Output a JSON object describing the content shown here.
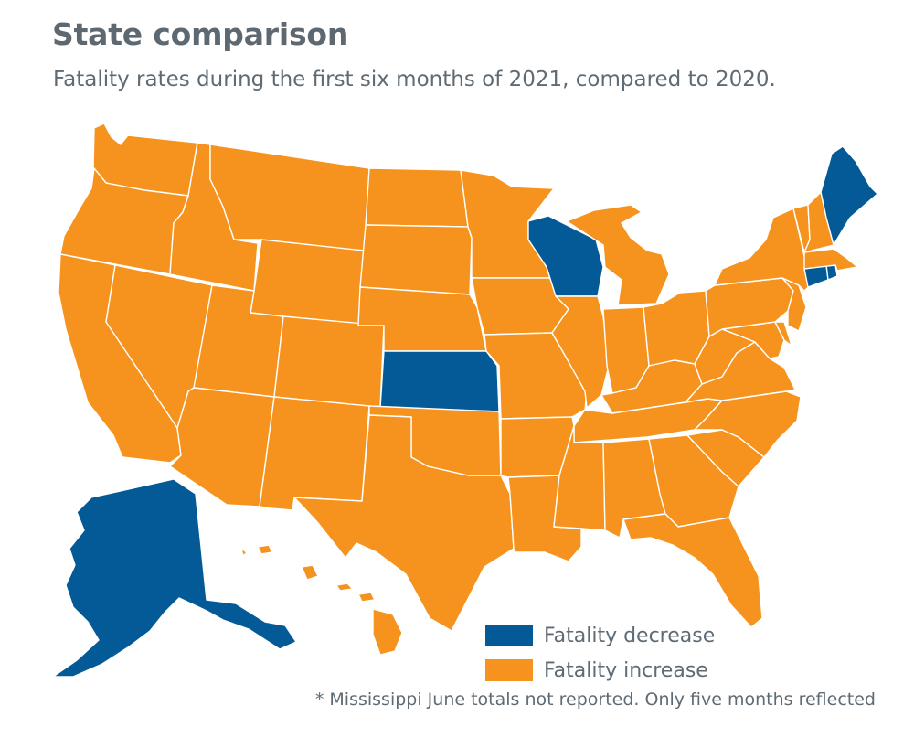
{
  "title": "State comparison",
  "subtitle": "Fatality rates during the first six months of 2021, compared to 2020.",
  "colors": {
    "decrease": "#035a96",
    "increase": "#f5931e",
    "border": "#ffffff"
  },
  "legend": [
    {
      "label": "Fatality decrease",
      "status": "decrease"
    },
    {
      "label": "Fatality increase",
      "status": "increase"
    }
  ],
  "footnote": "* Mississippi June totals not reported. Only five months reflected",
  "states": [
    {
      "name": "Washington",
      "status": "increase"
    },
    {
      "name": "Oregon",
      "status": "increase"
    },
    {
      "name": "California",
      "status": "increase"
    },
    {
      "name": "Idaho",
      "status": "increase"
    },
    {
      "name": "Nevada",
      "status": "increase"
    },
    {
      "name": "Montana",
      "status": "increase"
    },
    {
      "name": "Wyoming",
      "status": "increase"
    },
    {
      "name": "Utah",
      "status": "increase"
    },
    {
      "name": "Arizona",
      "status": "increase"
    },
    {
      "name": "Colorado",
      "status": "increase"
    },
    {
      "name": "New Mexico",
      "status": "increase"
    },
    {
      "name": "North Dakota",
      "status": "increase"
    },
    {
      "name": "South Dakota",
      "status": "increase"
    },
    {
      "name": "Nebraska",
      "status": "increase"
    },
    {
      "name": "Kansas",
      "status": "decrease"
    },
    {
      "name": "Oklahoma",
      "status": "increase"
    },
    {
      "name": "Texas",
      "status": "increase"
    },
    {
      "name": "Minnesota",
      "status": "increase"
    },
    {
      "name": "Iowa",
      "status": "increase"
    },
    {
      "name": "Missouri",
      "status": "increase"
    },
    {
      "name": "Arkansas",
      "status": "increase"
    },
    {
      "name": "Louisiana",
      "status": "increase"
    },
    {
      "name": "Wisconsin",
      "status": "decrease"
    },
    {
      "name": "Illinois",
      "status": "increase"
    },
    {
      "name": "Michigan",
      "status": "increase"
    },
    {
      "name": "Indiana",
      "status": "increase"
    },
    {
      "name": "Ohio",
      "status": "increase"
    },
    {
      "name": "Kentucky",
      "status": "increase"
    },
    {
      "name": "Tennessee",
      "status": "increase"
    },
    {
      "name": "Mississippi",
      "status": "increase"
    },
    {
      "name": "Alabama",
      "status": "increase"
    },
    {
      "name": "Georgia",
      "status": "increase"
    },
    {
      "name": "Florida",
      "status": "increase"
    },
    {
      "name": "South Carolina",
      "status": "increase"
    },
    {
      "name": "North Carolina",
      "status": "increase"
    },
    {
      "name": "Virginia",
      "status": "increase"
    },
    {
      "name": "West Virginia",
      "status": "increase"
    },
    {
      "name": "Maryland",
      "status": "increase"
    },
    {
      "name": "Delaware",
      "status": "increase"
    },
    {
      "name": "Pennsylvania",
      "status": "increase"
    },
    {
      "name": "New Jersey",
      "status": "increase"
    },
    {
      "name": "New York",
      "status": "increase"
    },
    {
      "name": "Connecticut",
      "status": "decrease"
    },
    {
      "name": "Rhode Island",
      "status": "decrease"
    },
    {
      "name": "Massachusetts",
      "status": "increase"
    },
    {
      "name": "Vermont",
      "status": "increase"
    },
    {
      "name": "New Hampshire",
      "status": "increase"
    },
    {
      "name": "Maine",
      "status": "decrease"
    },
    {
      "name": "Alaska",
      "status": "decrease"
    },
    {
      "name": "Hawaii",
      "status": "increase"
    }
  ]
}
